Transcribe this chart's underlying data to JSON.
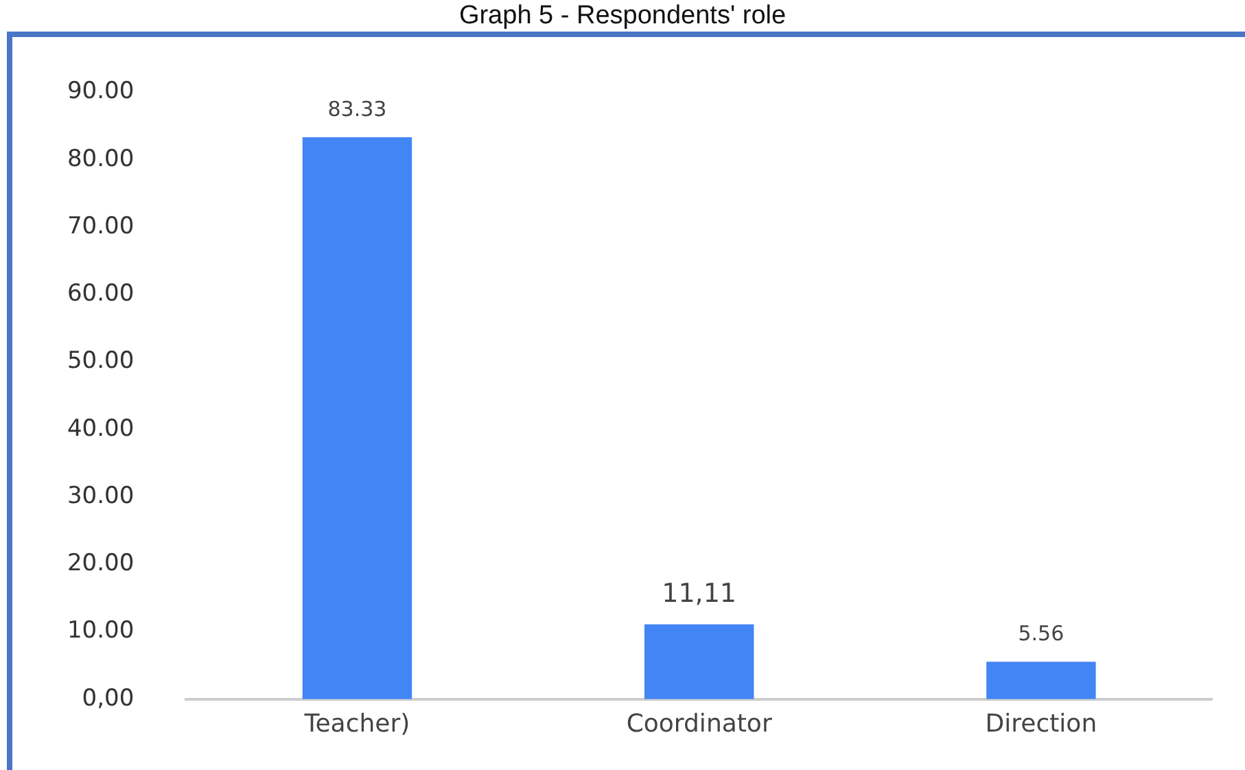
{
  "chart_data": {
    "type": "bar",
    "title": "Graph 5 - Respondents' role",
    "categories": [
      "Teacher)",
      "Coordinator",
      "Direction"
    ],
    "values": [
      83.33,
      11.11,
      5.56
    ],
    "color": "#4285f4",
    "value_labels": [
      "83.33",
      "11,11",
      "5.56"
    ],
    "ylim": [
      0,
      90
    ],
    "yticks": [
      {
        "value": 0,
        "label": "0,00"
      },
      {
        "value": 10,
        "label": "10.00"
      },
      {
        "value": 20,
        "label": "20.00"
      },
      {
        "value": 30,
        "label": "30.00"
      },
      {
        "value": 40,
        "label": "40.00"
      },
      {
        "value": 50,
        "label": "50.00"
      },
      {
        "value": 60,
        "label": "60.00"
      },
      {
        "value": 70,
        "label": "70.00"
      },
      {
        "value": 80,
        "label": "80.00"
      },
      {
        "value": 90,
        "label": "90.00"
      }
    ],
    "grid": false,
    "legend": false
  }
}
